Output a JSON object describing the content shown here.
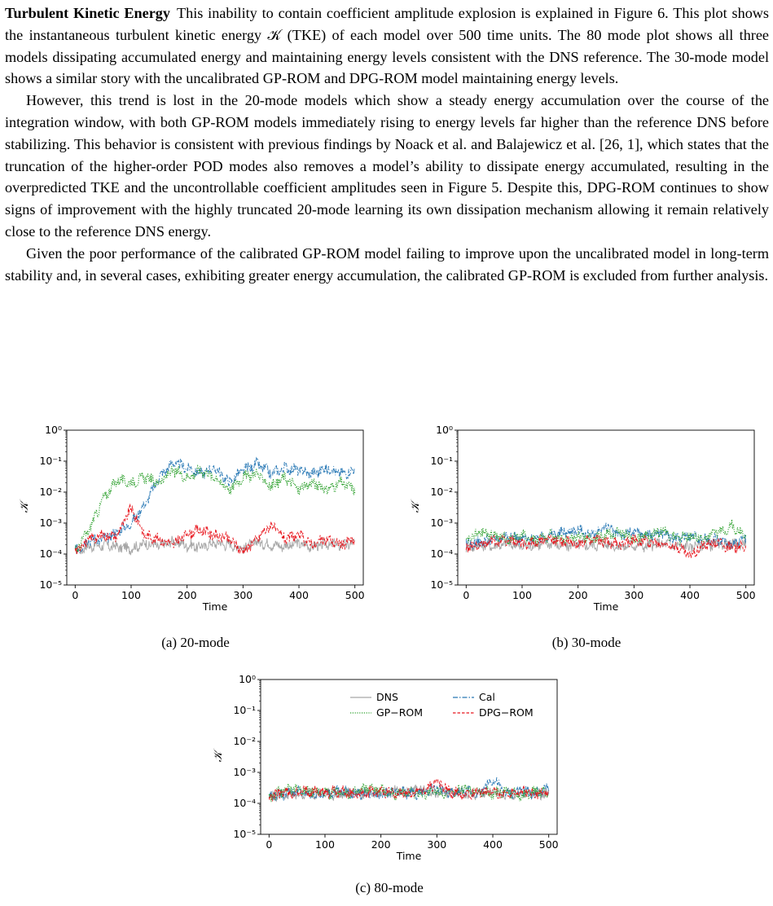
{
  "section": {
    "runin_heading": "Turbulent Kinetic Energy",
    "paragraphs": [
      "This inability to contain coefficient amplitude explosion is explained in Figure 6. This plot shows the instantaneous turbulent kinetic energy 𝒦 (TKE) of each model over 500 time units. The 80 mode plot shows all three models dissipating accumulated energy and maintaining energy levels consistent with the DNS reference. The 30-mode model shows a similar story with the uncalibrated GP-ROM and DPG-ROM model maintaining energy levels.",
      "However, this trend is lost in the 20-mode models which show a steady energy accumulation over the course of the integration window, with both GP-ROM models immediately rising to energy levels far higher than the reference DNS before stabilizing. This behavior is consistent with previous findings by Noack et al. and Balajewicz et al. [26, 1], which states that the truncation of the higher-order POD modes also removes a model’s ability to dissipate energy accumulated, resulting in the overpredicted TKE and the uncontrollable coefficient amplitudes seen in Figure 5. Despite this, DPG-ROM continues to show signs of improvement with the highly truncated 20-mode learning its own dissipation mechanism allowing it remain relatively close to the reference DNS energy.",
      "Given the poor performance of the calibrated GP-ROM model failing to improve upon the uncalibrated model in long-term stability and, in several cases, exhibiting greater energy accumulation, the calibrated GP-ROM is excluded from further analysis."
    ]
  },
  "figure": {
    "legend": {
      "dns": "DNS",
      "cal": "Cal",
      "gprom": "GP−ROM",
      "dpgrom": "DPG−ROM"
    },
    "colors": {
      "dns": "#a6a6a6",
      "cal": "#2878b5",
      "gprom": "#2ca02c",
      "dpgrom": "#e8141c"
    }
  },
  "chart_data": [
    {
      "type": "line",
      "caption": "(a) 20-mode",
      "xlabel": "Time",
      "ylabel": "𝒦",
      "xlim": [
        -15,
        515
      ],
      "ylim_log10": [
        -5,
        0
      ],
      "yscale": "log",
      "xticks": [
        0,
        100,
        200,
        300,
        400,
        500
      ],
      "yticks": [
        "10⁰",
        "10⁻¹",
        "10⁻²",
        "10⁻³",
        "10⁻⁴",
        "10⁻⁵"
      ],
      "series": [
        {
          "key": "dns",
          "x": [
            0,
            25,
            50,
            75,
            100,
            125,
            150,
            175,
            200,
            225,
            250,
            275,
            300,
            325,
            350,
            375,
            400,
            425,
            450,
            475,
            500
          ],
          "y": [
            0.00012,
            0.00018,
            0.00019,
            0.00017,
            0.00015,
            0.00022,
            0.00018,
            0.00025,
            0.00019,
            0.00017,
            0.00023,
            0.0002,
            0.00016,
            0.00024,
            0.0002,
            0.00018,
            0.00022,
            0.00017,
            0.00021,
            0.00019,
            0.00022
          ]
        },
        {
          "key": "cal",
          "x": [
            0,
            25,
            50,
            75,
            100,
            125,
            150,
            175,
            200,
            225,
            250,
            275,
            300,
            325,
            350,
            375,
            400,
            425,
            450,
            475,
            500
          ],
          "y": [
            0.00012,
            0.0003,
            0.0003,
            0.0005,
            0.001,
            0.004,
            0.03,
            0.09,
            0.06,
            0.04,
            0.06,
            0.02,
            0.05,
            0.08,
            0.04,
            0.06,
            0.05,
            0.04,
            0.06,
            0.04,
            0.05
          ]
        },
        {
          "key": "gprom",
          "x": [
            0,
            25,
            50,
            75,
            100,
            125,
            150,
            175,
            200,
            225,
            250,
            275,
            300,
            325,
            350,
            375,
            400,
            425,
            450,
            475,
            500
          ],
          "y": [
            0.00012,
            0.0006,
            0.006,
            0.025,
            0.02,
            0.03,
            0.02,
            0.05,
            0.03,
            0.05,
            0.03,
            0.012,
            0.03,
            0.04,
            0.015,
            0.03,
            0.012,
            0.02,
            0.012,
            0.02,
            0.012
          ]
        },
        {
          "key": "dpgrom",
          "x": [
            0,
            25,
            50,
            75,
            100,
            125,
            150,
            175,
            200,
            225,
            250,
            275,
            300,
            325,
            350,
            375,
            400,
            425,
            450,
            475,
            500
          ],
          "y": [
            0.00013,
            0.0003,
            0.0004,
            0.0004,
            0.003,
            0.0004,
            0.0003,
            0.0002,
            0.00045,
            0.0006,
            0.0004,
            0.0003,
            0.00012,
            0.0003,
            0.0009,
            0.0003,
            0.0004,
            0.0002,
            0.0003,
            0.0002,
            0.0003
          ]
        }
      ]
    },
    {
      "type": "line",
      "caption": "(b) 30-mode",
      "xlabel": "Time",
      "ylabel": "𝒦",
      "xlim": [
        -15,
        515
      ],
      "ylim_log10": [
        -5,
        0
      ],
      "yscale": "log",
      "xticks": [
        0,
        100,
        200,
        300,
        400,
        500
      ],
      "yticks": [
        "10⁰",
        "10⁻¹",
        "10⁻²",
        "10⁻³",
        "10⁻⁴",
        "10⁻⁵"
      ],
      "series": [
        {
          "key": "dns",
          "x": [
            0,
            25,
            50,
            75,
            100,
            125,
            150,
            175,
            200,
            225,
            250,
            275,
            300,
            325,
            350,
            375,
            400,
            425,
            450,
            475,
            500
          ],
          "y": [
            0.00015,
            0.0002,
            0.00018,
            0.00022,
            0.00017,
            0.0002,
            0.00023,
            0.00018,
            0.00021,
            0.00019,
            0.00022,
            0.00017,
            0.0002,
            0.00018,
            0.00022,
            0.00019,
            0.00017,
            0.00021,
            0.00019,
            0.0002,
            0.00022
          ]
        },
        {
          "key": "cal",
          "x": [
            0,
            25,
            50,
            75,
            100,
            125,
            150,
            175,
            200,
            225,
            250,
            275,
            300,
            325,
            350,
            375,
            400,
            425,
            450,
            475,
            500
          ],
          "y": [
            0.0002,
            0.00025,
            0.0003,
            0.0004,
            0.0003,
            0.0003,
            0.0004,
            0.0005,
            0.0006,
            0.0004,
            0.0008,
            0.0004,
            0.0005,
            0.0004,
            0.0005,
            0.0003,
            0.0004,
            0.0003,
            0.0003,
            0.0002,
            0.0003
          ]
        },
        {
          "key": "gprom",
          "x": [
            0,
            25,
            50,
            75,
            100,
            125,
            150,
            175,
            200,
            225,
            250,
            275,
            300,
            325,
            350,
            375,
            400,
            425,
            450,
            475,
            500
          ],
          "y": [
            0.00025,
            0.0005,
            0.0004,
            0.0003,
            0.0004,
            0.0003,
            0.0004,
            0.0003,
            0.0004,
            0.0003,
            0.0004,
            0.0005,
            0.0003,
            0.0004,
            0.0006,
            0.0003,
            0.0004,
            0.0003,
            0.0005,
            0.0008,
            0.0004
          ]
        },
        {
          "key": "dpgrom",
          "x": [
            0,
            25,
            50,
            75,
            100,
            125,
            150,
            175,
            200,
            225,
            250,
            275,
            300,
            325,
            350,
            375,
            400,
            425,
            450,
            475,
            500
          ],
          "y": [
            0.00018,
            0.0002,
            0.00025,
            0.0003,
            0.0002,
            0.00025,
            0.0003,
            0.00025,
            0.0002,
            0.0003,
            0.00025,
            0.0002,
            0.0003,
            0.00025,
            0.0002,
            0.00018,
            9e-05,
            0.0002,
            0.00025,
            0.00015,
            0.0002
          ]
        }
      ]
    },
    {
      "type": "line",
      "caption": "(c) 80-mode",
      "xlabel": "Time",
      "ylabel": "𝒦",
      "xlim": [
        -15,
        515
      ],
      "ylim_log10": [
        -5,
        0
      ],
      "yscale": "log",
      "xticks": [
        0,
        100,
        200,
        300,
        400,
        500
      ],
      "yticks": [
        "10⁰",
        "10⁻¹",
        "10⁻²",
        "10⁻³",
        "10⁻⁴",
        "10⁻⁵"
      ],
      "legend": "top-right",
      "series": [
        {
          "key": "dns",
          "x": [
            0,
            25,
            50,
            75,
            100,
            125,
            150,
            175,
            200,
            225,
            250,
            275,
            300,
            325,
            350,
            375,
            400,
            425,
            450,
            475,
            500
          ],
          "y": [
            0.00016,
            0.0002,
            0.00018,
            0.00022,
            0.0002,
            0.00019,
            0.00023,
            0.0002,
            0.00021,
            0.00024,
            0.00025,
            0.0003,
            0.0002,
            0.00022,
            0.0002,
            0.00019,
            0.00021,
            0.0002,
            0.00019,
            0.00021,
            0.0002
          ]
        },
        {
          "key": "cal",
          "x": [
            0,
            25,
            50,
            75,
            100,
            125,
            150,
            175,
            200,
            225,
            250,
            275,
            300,
            325,
            350,
            375,
            400,
            425,
            450,
            475,
            500
          ],
          "y": [
            0.00017,
            0.0002,
            0.00025,
            0.0002,
            0.0002,
            0.00025,
            0.0002,
            0.00022,
            0.0002,
            0.00025,
            0.0002,
            0.00022,
            0.0003,
            0.0002,
            0.00025,
            0.0002,
            0.0006,
            0.0002,
            0.00025,
            0.0002,
            0.0003
          ]
        },
        {
          "key": "gprom",
          "x": [
            0,
            25,
            50,
            75,
            100,
            125,
            150,
            175,
            200,
            225,
            250,
            275,
            300,
            325,
            350,
            375,
            400,
            425,
            450,
            475,
            500
          ],
          "y": [
            0.00015,
            0.00025,
            0.0003,
            0.00025,
            0.0002,
            0.00025,
            0.0002,
            0.0003,
            0.00025,
            0.0002,
            0.00025,
            0.0002,
            0.00025,
            0.0002,
            0.0003,
            0.00025,
            0.0002,
            0.00025,
            0.00018,
            0.00025,
            0.0002
          ]
        },
        {
          "key": "dpgrom",
          "x": [
            0,
            25,
            50,
            75,
            100,
            125,
            150,
            175,
            200,
            225,
            250,
            275,
            300,
            325,
            350,
            375,
            400,
            425,
            450,
            475,
            500
          ],
          "y": [
            0.00016,
            0.00022,
            0.0002,
            0.00025,
            0.00022,
            0.00025,
            0.0002,
            0.00022,
            0.00025,
            0.00022,
            0.0002,
            0.00025,
            0.0005,
            0.00022,
            0.0002,
            0.00025,
            0.00022,
            0.0002,
            0.00025,
            0.0002,
            0.00022
          ]
        }
      ]
    }
  ]
}
